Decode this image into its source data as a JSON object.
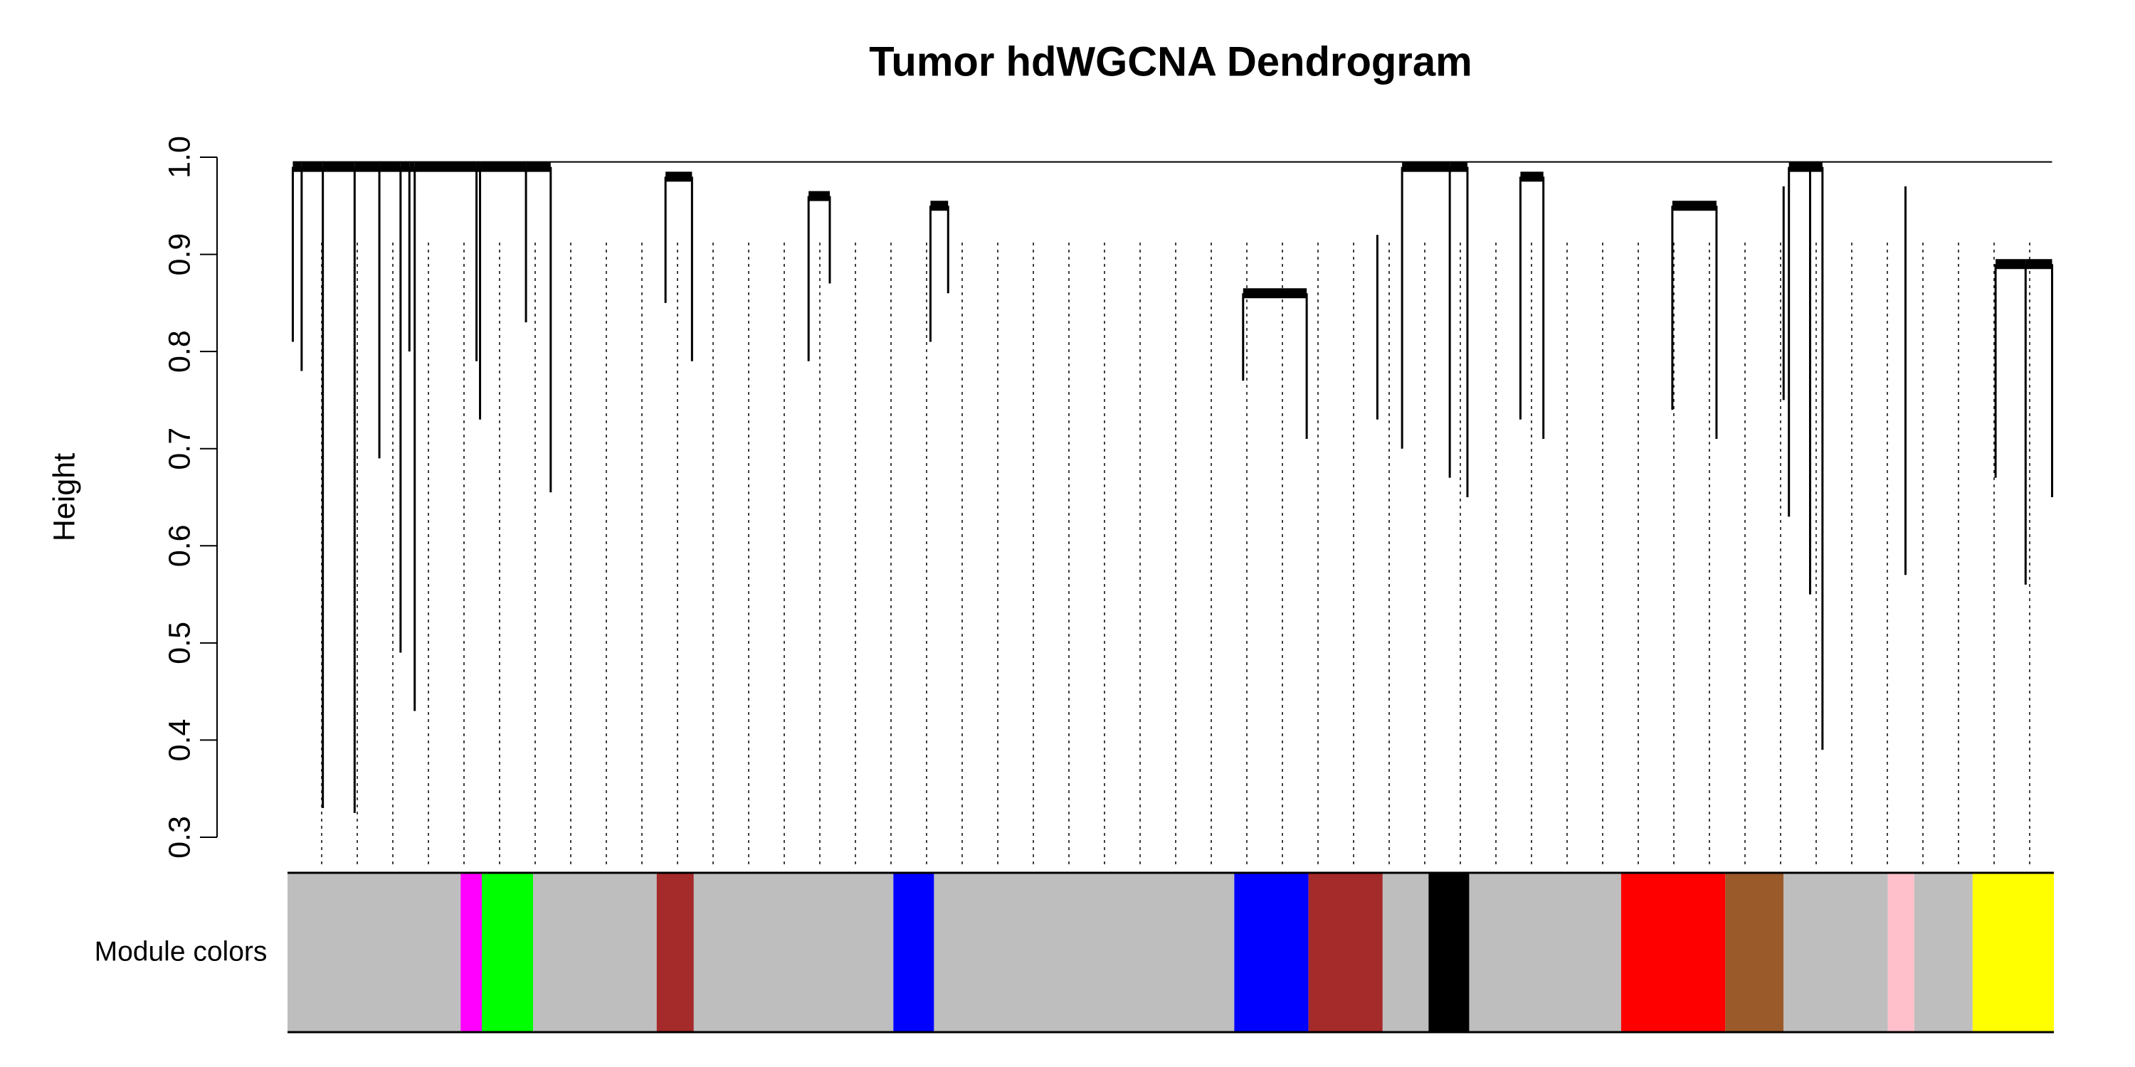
{
  "chart_data": {
    "type": "dendrogram",
    "title": "Tumor hdWGCNA Dendrogram",
    "ylabel": "Height",
    "ylim": [
      0.3,
      1.0
    ],
    "yticks": [
      0.3,
      0.4,
      0.5,
      0.6,
      0.7,
      0.8,
      0.9,
      {
        "value": 1.0,
        "label": "1.0"
      }
    ],
    "color_bar_label": "Module colors",
    "modules": {
      "colors": [
        "#bebebe",
        "#ff00ff",
        "#00ff00",
        "#bebebe",
        "#a52a2a",
        "#bebebe",
        "#0000ff",
        "#bebebe",
        "#0000ff",
        "#a52a2a",
        "#bebebe",
        "#000000",
        "#bebebe",
        "#ff0000",
        "#9b5a2a",
        "#bebebe",
        "#ffc0cb",
        "#bebebe",
        "#ffff00"
      ],
      "sizes": [
        98,
        12,
        29,
        70,
        21,
        113,
        23,
        170,
        42,
        42,
        26,
        23,
        86,
        59,
        33,
        59,
        15,
        33,
        46
      ]
    },
    "branches": {
      "x": [
        3,
        8,
        20,
        38,
        52,
        64,
        69,
        72,
        107,
        109,
        135,
        149,
        214,
        229,
        295,
        307,
        364,
        374,
        541,
        577,
        617,
        631,
        658,
        668,
        698,
        711,
        784,
        809,
        847,
        850,
        862,
        869,
        916,
        967,
        984,
        999
      ],
      "merge": [
        0.99,
        0.99,
        0.99,
        0.99,
        0.99,
        0.99,
        0.99,
        0.99,
        0.99,
        0.99,
        0.99,
        0.99,
        0.98,
        0.98,
        0.96,
        0.96,
        0.95,
        0.95,
        0.86,
        0.86,
        0.92,
        0.99,
        0.99,
        0.99,
        0.98,
        0.98,
        0.95,
        0.95,
        0.97,
        0.99,
        0.99,
        0.99,
        0.97,
        0.89,
        0.89,
        0.89
      ],
      "values": [
        0.81,
        0.78,
        0.33,
        0.325,
        0.69,
        0.49,
        0.8,
        0.43,
        0.79,
        0.73,
        0.83,
        0.655,
        0.85,
        0.79,
        0.79,
        0.87,
        0.81,
        0.86,
        0.77,
        0.71,
        0.73,
        0.7,
        0.67,
        0.65,
        0.73,
        0.71,
        0.74,
        0.71,
        0.75,
        0.63,
        0.55,
        0.39,
        0.57,
        0.67,
        0.56,
        0.65
      ]
    }
  }
}
